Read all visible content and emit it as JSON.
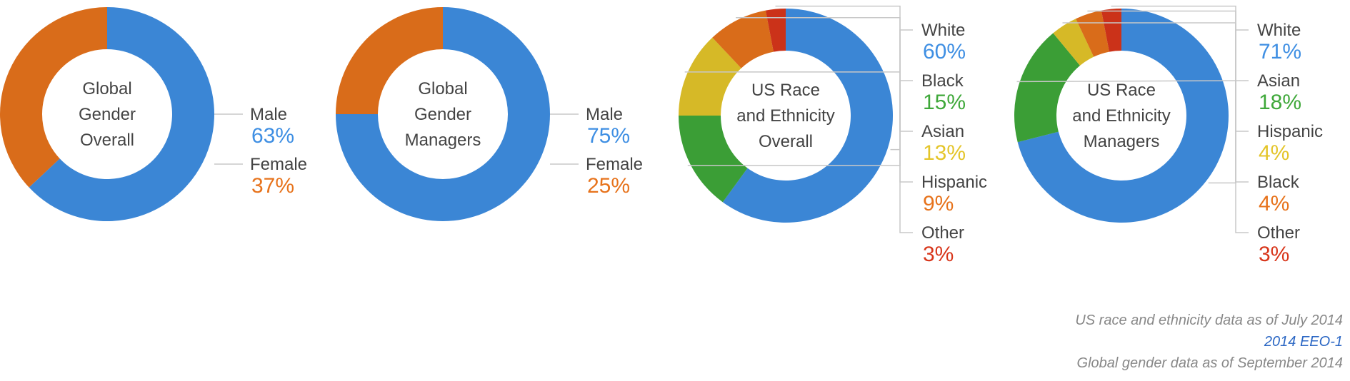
{
  "colors": {
    "blue": "#3f8fe3",
    "green": "#3fa83a",
    "yellow": "#e4c52a",
    "orange": "#e7731c",
    "red": "#d8361b",
    "label_gray": "#444444",
    "leader_gray": "#c8c8c8",
    "note_gray": "#888888",
    "link_blue": "#2b67c4"
  },
  "chart_data": [
    {
      "type": "pie",
      "title": "Global Gender Overall",
      "title_lines": [
        "Global",
        "Gender",
        "Overall"
      ],
      "slices": [
        {
          "label": "Male",
          "value": 63,
          "display": "63%",
          "color": "#3f8fe3"
        },
        {
          "label": "Female",
          "value": 37,
          "display": "37%",
          "color": "#e7731c"
        }
      ]
    },
    {
      "type": "pie",
      "title": "Global Gender Managers",
      "title_lines": [
        "Global",
        "Gender",
        "Managers"
      ],
      "slices": [
        {
          "label": "Male",
          "value": 75,
          "display": "75%",
          "color": "#3f8fe3"
        },
        {
          "label": "Female",
          "value": 25,
          "display": "25%",
          "color": "#e7731c"
        }
      ]
    },
    {
      "type": "pie",
      "title": "US Race and Ethnicity Overall",
      "title_lines": [
        "US Race",
        "and Ethnicity",
        "Overall"
      ],
      "slices": [
        {
          "label": "White",
          "value": 60,
          "display": "60%",
          "color": "#3f8fe3"
        },
        {
          "label": "Black",
          "value": 15,
          "display": "15%",
          "color": "#3fa83a"
        },
        {
          "label": "Asian",
          "value": 13,
          "display": "13%",
          "color": "#e4c52a"
        },
        {
          "label": "Hispanic",
          "value": 9,
          "display": "9%",
          "color": "#e7731c"
        },
        {
          "label": "Other",
          "value": 3,
          "display": "3%",
          "color": "#d8361b"
        }
      ]
    },
    {
      "type": "pie",
      "title": "US Race and Ethnicity Managers",
      "title_lines": [
        "US Race",
        "and Ethnicity",
        "Managers"
      ],
      "slices": [
        {
          "label": "White",
          "value": 71,
          "display": "71%",
          "color": "#3f8fe3"
        },
        {
          "label": "Asian",
          "value": 18,
          "display": "18%",
          "color": "#3fa83a"
        },
        {
          "label": "Hispanic",
          "value": 4,
          "display": "4%",
          "color": "#e4c52a"
        },
        {
          "label": "Black",
          "value": 4,
          "display": "4%",
          "color": "#e7731c"
        },
        {
          "label": "Other",
          "value": 3,
          "display": "3%",
          "color": "#d8361b"
        }
      ]
    }
  ],
  "footnotes": {
    "race_note": "US race and ethnicity data as of July 2014",
    "eeo_link": "2014 EEO-1",
    "gender_note": "Global gender data as of September 2014"
  }
}
